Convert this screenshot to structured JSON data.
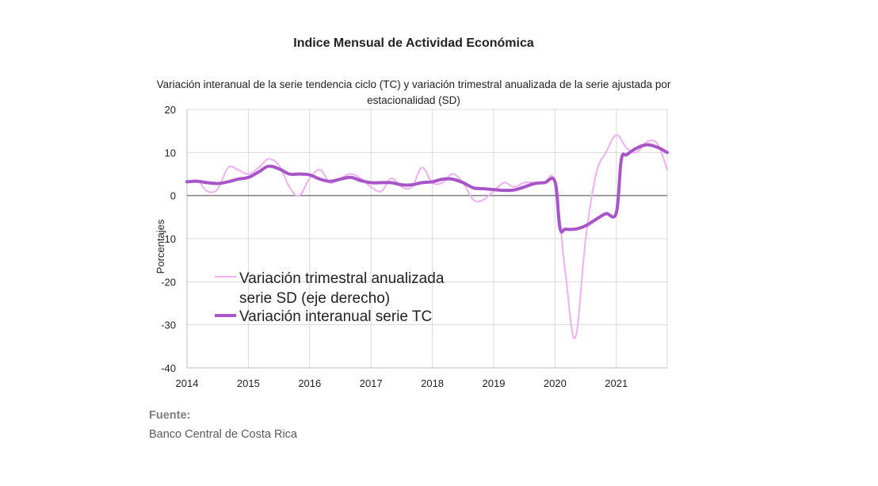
{
  "title": "Indice Mensual de  Actividad Económica",
  "subtitle": "Variación interanual de la serie tendencia ciclo (TC) y variación trimestral anualizada de la serie ajustada por estacionalidad (SD)",
  "source_title": "Fuente:",
  "source_text": "Banco Central de Costa Rica",
  "colors": {
    "sd": "#efb0f0",
    "tc": "#a855c8",
    "zero_line": "#7f7f7f",
    "grid": "#d9d9d9"
  },
  "chart_data": {
    "type": "line",
    "title": "Indice Mensual de  Actividad Económica",
    "subtitle": "Variación interanual de la serie tendencia ciclo (TC) y variación trimestral anualizada de la serie ajustada por estacionalidad (SD)",
    "xlabel": "",
    "ylabel": "Porcentajes",
    "ylim": [
      -40,
      20
    ],
    "yticks": [
      20,
      10,
      0,
      -10,
      -20,
      -30,
      -40
    ],
    "xlim": [
      2014,
      2021.83
    ],
    "xticks": [
      2014,
      2015,
      2016,
      2017,
      2018,
      2019,
      2020,
      2021
    ],
    "grid": "vertical per year, horizontal per 10",
    "legend_position": "lower-left inside plot",
    "series": [
      {
        "name": "Variación trimestral anualizada serie SD (eje derecho)",
        "x": [
          2014.0,
          2014.17,
          2014.33,
          2014.5,
          2014.67,
          2014.83,
          2015.0,
          2015.17,
          2015.33,
          2015.5,
          2015.67,
          2015.83,
          2016.0,
          2016.17,
          2016.33,
          2016.5,
          2016.67,
          2016.83,
          2017.0,
          2017.17,
          2017.33,
          2017.5,
          2017.67,
          2017.83,
          2018.0,
          2018.17,
          2018.33,
          2018.5,
          2018.67,
          2018.83,
          2019.0,
          2019.17,
          2019.33,
          2019.5,
          2019.67,
          2019.83,
          2020.0,
          2020.17,
          2020.33,
          2020.5,
          2020.67,
          2020.83,
          2021.0,
          2021.17,
          2021.33,
          2021.5,
          2021.67,
          2021.83
        ],
        "values": [
          3.0,
          3.5,
          1.0,
          1.5,
          6.5,
          6.0,
          5.0,
          6.5,
          8.5,
          7.0,
          2.0,
          0.0,
          4.0,
          6.0,
          3.0,
          4.0,
          5.0,
          4.0,
          2.0,
          1.0,
          4.0,
          2.0,
          2.0,
          6.5,
          3.0,
          3.0,
          5.0,
          3.0,
          -1.0,
          -1.0,
          1.0,
          3.0,
          2.0,
          3.0,
          3.0,
          3.0,
          3.0,
          -18.0,
          -33.0,
          -10.0,
          5.0,
          10.0,
          14.0,
          11.0,
          10.0,
          12.5,
          12.0,
          6.0
        ]
      },
      {
        "name": "Variación interanual serie TC",
        "x": [
          2014.0,
          2014.17,
          2014.33,
          2014.5,
          2014.67,
          2014.83,
          2015.0,
          2015.17,
          2015.33,
          2015.5,
          2015.67,
          2015.83,
          2016.0,
          2016.17,
          2016.33,
          2016.5,
          2016.67,
          2016.83,
          2017.0,
          2017.17,
          2017.33,
          2017.5,
          2017.67,
          2017.83,
          2018.0,
          2018.17,
          2018.33,
          2018.5,
          2018.67,
          2018.83,
          2019.0,
          2019.17,
          2019.33,
          2019.5,
          2019.67,
          2019.83,
          2020.0,
          2020.08,
          2020.17,
          2020.33,
          2020.5,
          2020.67,
          2020.83,
          2021.0,
          2021.08,
          2021.17,
          2021.33,
          2021.5,
          2021.67,
          2021.83
        ],
        "values": [
          3.2,
          3.3,
          3.0,
          2.8,
          3.2,
          3.8,
          4.2,
          5.5,
          6.8,
          6.2,
          5.0,
          5.0,
          4.8,
          3.8,
          3.3,
          3.8,
          4.2,
          3.5,
          3.0,
          3.0,
          3.0,
          2.5,
          2.5,
          3.0,
          3.2,
          3.8,
          3.8,
          3.0,
          1.8,
          1.6,
          1.4,
          1.2,
          1.3,
          2.0,
          2.8,
          3.0,
          3.2,
          -7.5,
          -7.8,
          -7.8,
          -7.0,
          -5.5,
          -4.2,
          -4.0,
          8.3,
          9.5,
          11.0,
          11.8,
          11.2,
          10.0
        ]
      }
    ]
  }
}
